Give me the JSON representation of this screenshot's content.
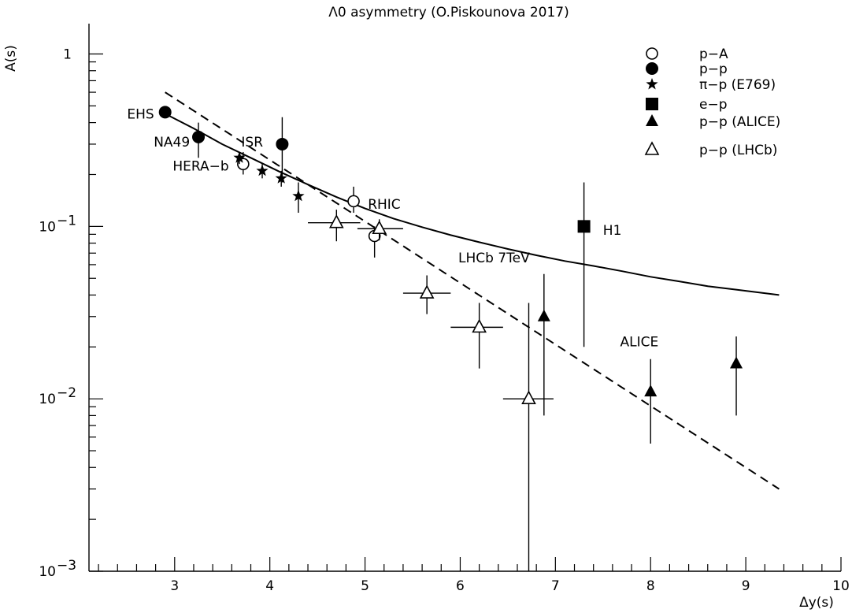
{
  "chart_data": {
    "type": "scatter",
    "title": "Λ0 asymmetry (O.Piskounova 2017)",
    "xlabel": "Δy(s)",
    "ylabel": "A(s)",
    "xlim": [
      2.1,
      10
    ],
    "ylim": [
      0.001,
      1.5
    ],
    "yscale": "log",
    "x_ticks": [
      3,
      4,
      5,
      6,
      7,
      8,
      9,
      10
    ],
    "y_ticks": [
      {
        "value": 1,
        "base": "1",
        "exp": ""
      },
      {
        "value": 0.1,
        "base": "10",
        "exp": "−1"
      },
      {
        "value": 0.01,
        "base": "10",
        "exp": "−2"
      },
      {
        "value": 0.001,
        "base": "10",
        "exp": "−3"
      }
    ],
    "grid": false,
    "legend_position": "top-right",
    "legend": [
      {
        "marker": "open-circle",
        "label": "p−A"
      },
      {
        "marker": "filled-circle",
        "label": "p−p"
      },
      {
        "marker": "star",
        "label": "π−p (E769)"
      },
      {
        "marker": "filled-square",
        "label": "e−p"
      },
      {
        "marker": "filled-triangle",
        "label": "p−p (ALICE)"
      },
      {
        "marker": "open-triangle",
        "label": "p−p (LHCb)"
      }
    ],
    "series": [
      {
        "name": "p−A",
        "marker": "open-circle",
        "points": [
          {
            "x": 3.72,
            "y": 0.23,
            "ylo": 0.2,
            "yhi": 0.27
          },
          {
            "x": 4.88,
            "y": 0.14,
            "ylo": 0.12,
            "yhi": 0.17
          },
          {
            "x": 5.1,
            "y": 0.088,
            "ylo": 0.066,
            "yhi": 0.1
          }
        ]
      },
      {
        "name": "p−p",
        "marker": "filled-circle",
        "points": [
          {
            "x": 2.9,
            "y": 0.46,
            "ylo": 0.46,
            "yhi": 0.46
          },
          {
            "x": 3.25,
            "y": 0.33,
            "ylo": 0.25,
            "yhi": 0.4
          },
          {
            "x": 4.13,
            "y": 0.3,
            "ylo": 0.18,
            "yhi": 0.43
          }
        ]
      },
      {
        "name": "π−p (E769)",
        "marker": "star",
        "points": [
          {
            "x": 3.68,
            "y": 0.25,
            "ylo": 0.23,
            "yhi": 0.27
          },
          {
            "x": 3.92,
            "y": 0.21,
            "ylo": 0.19,
            "yhi": 0.23
          },
          {
            "x": 4.12,
            "y": 0.19,
            "ylo": 0.17,
            "yhi": 0.21
          },
          {
            "x": 4.3,
            "y": 0.15,
            "ylo": 0.12,
            "yhi": 0.18
          }
        ]
      },
      {
        "name": "e−p",
        "marker": "filled-square",
        "points": [
          {
            "x": 7.3,
            "y": 0.1,
            "ylo": 0.02,
            "yhi": 0.18
          }
        ]
      },
      {
        "name": "p−p (ALICE)",
        "marker": "filled-triangle",
        "points": [
          {
            "x": 6.88,
            "y": 0.03,
            "ylo": 0.008,
            "yhi": 0.053
          },
          {
            "x": 8.0,
            "y": 0.011,
            "ylo": 0.0055,
            "yhi": 0.017
          },
          {
            "x": 8.9,
            "y": 0.016,
            "ylo": 0.008,
            "yhi": 0.023
          }
        ]
      },
      {
        "name": "p−p (LHCb)",
        "marker": "open-triangle",
        "points": [
          {
            "x": 4.7,
            "y": 0.105,
            "ylo": 0.082,
            "yhi": 0.125,
            "xlo": 4.4,
            "xhi": 4.95
          },
          {
            "x": 5.15,
            "y": 0.097,
            "ylo": 0.083,
            "yhi": 0.11,
            "xlo": 4.92,
            "xhi": 5.4
          },
          {
            "x": 5.65,
            "y": 0.041,
            "ylo": 0.031,
            "yhi": 0.052,
            "xlo": 5.4,
            "xhi": 5.9
          },
          {
            "x": 6.2,
            "y": 0.026,
            "ylo": 0.015,
            "yhi": 0.036,
            "xlo": 5.9,
            "xhi": 6.45
          },
          {
            "x": 6.72,
            "y": 0.01,
            "ylo": 0.001,
            "yhi": 0.036,
            "xlo": 6.45,
            "xhi": 6.98
          }
        ]
      }
    ],
    "curves": [
      {
        "style": "solid",
        "points": [
          [
            2.9,
            0.45
          ],
          [
            3.2,
            0.37
          ],
          [
            3.5,
            0.3
          ],
          [
            3.8,
            0.25
          ],
          [
            4.1,
            0.208
          ],
          [
            4.4,
            0.175
          ],
          [
            4.7,
            0.148
          ],
          [
            5.0,
            0.127
          ],
          [
            5.3,
            0.111
          ],
          [
            5.6,
            0.099
          ],
          [
            5.9,
            0.089
          ],
          [
            6.2,
            0.081
          ],
          [
            6.5,
            0.074
          ],
          [
            6.8,
            0.068
          ],
          [
            7.1,
            0.063
          ],
          [
            7.4,
            0.059
          ],
          [
            7.7,
            0.055
          ],
          [
            8.0,
            0.051
          ],
          [
            8.3,
            0.048
          ],
          [
            8.6,
            0.045
          ],
          [
            8.9,
            0.043
          ],
          [
            9.2,
            0.041
          ],
          [
            9.35,
            0.04
          ]
        ]
      },
      {
        "style": "dashed",
        "points": [
          [
            2.9,
            0.6
          ],
          [
            9.35,
            0.003
          ]
        ]
      }
    ],
    "annotations": [
      {
        "text": "EHS",
        "x": 2.5,
        "y": 0.45
      },
      {
        "text": "NA49",
        "x": 2.78,
        "y": 0.31
      },
      {
        "text": "ISR",
        "x": 3.7,
        "y": 0.31
      },
      {
        "text": "HERA−b",
        "x": 2.98,
        "y": 0.225
      },
      {
        "text": "RHIC",
        "x": 5.03,
        "y": 0.135
      },
      {
        "text": "H1",
        "x": 7.5,
        "y": 0.095
      },
      {
        "text": "LHCb 7TeV",
        "x": 5.98,
        "y": 0.066
      },
      {
        "text": "ALICE",
        "x": 7.68,
        "y": 0.0215
      }
    ]
  }
}
